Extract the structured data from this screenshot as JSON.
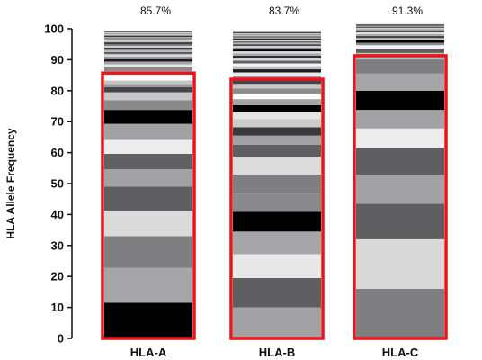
{
  "chart_data": {
    "type": "bar",
    "stacked": true,
    "ylabel": "HLA Allele Frequency",
    "xlabel": "",
    "ylim": [
      0,
      100
    ],
    "yticks": [
      0,
      10,
      20,
      30,
      40,
      50,
      60,
      70,
      80,
      90,
      100
    ],
    "grid": false,
    "categories": [
      "HLA-A",
      "HLA-B",
      "HLA-C"
    ],
    "highlight_percent_labels": [
      "85.7%",
      "83.7%",
      "91.3%"
    ],
    "highlight_values": [
      85.7,
      83.7,
      91.3
    ],
    "highlight_color": "#e8151b",
    "stacks": [
      {
        "category": "HLA-A",
        "segment_values": [
          11.5,
          11.3,
          10.2,
          8.2,
          7.8,
          5.6,
          5.0,
          4.5,
          5.2,
          4.5,
          3.1,
          2.6,
          1.6,
          1.0,
          1.2,
          1.8,
          1.2,
          1.2,
          1.0,
          0.9,
          0.8,
          0.8,
          0.8,
          0.7,
          0.7,
          0.7,
          0.6,
          0.6,
          0.5,
          0.5,
          0.5,
          0.4,
          0.4,
          0.4,
          0.4,
          0.3,
          0.3,
          0.3,
          0.3
        ],
        "segment_colors": [
          "#000000",
          "#a6a6a8",
          "#7f7f81",
          "#dadada",
          "#5f5f61",
          "#a2a2a4",
          "#616163",
          "#ececec",
          "#a2a2a4",
          "#000000",
          "#8a8a8c",
          "#c8c8ca",
          "#454547",
          "#9a9a9c",
          "#c4c4c6",
          "#ffffff",
          "#c8c8ca",
          "#8a8a8c",
          "#e6e6e6",
          "#a6a6a8",
          "#1a1a1a",
          "#9a9a9c",
          "#d8d8da",
          "#5f5f61",
          "#b8b8ba",
          "#3a3a3c",
          "#cfcfd1",
          "#7a7a7c",
          "#222222",
          "#bdbdbf",
          "#e8e8ea",
          "#6a6a6c",
          "#a8a8aa",
          "#2e2e30",
          "#d0d0d2",
          "#8c8c8e",
          "#dcdcde",
          "#555557",
          "#b0b0b2"
        ]
      },
      {
        "category": "HLA-B",
        "segment_values": [
          10.0,
          9.5,
          7.7,
          7.3,
          6.4,
          5.8,
          6.2,
          5.8,
          3.8,
          3.0,
          2.7,
          2.6,
          2.3,
          2.2,
          2.0,
          1.8,
          1.6,
          1.5,
          1.4,
          1.2,
          1.1,
          1.0,
          1.0,
          0.9,
          0.9,
          0.8,
          0.8,
          0.7,
          0.7,
          0.6,
          0.6,
          0.6,
          0.5,
          0.5,
          0.5,
          0.4,
          0.4,
          0.4,
          0.4,
          0.3,
          0.3,
          0.3,
          0.3,
          0.3,
          0.2
        ],
        "segment_colors": [
          "#a2a2a4",
          "#5f5f61",
          "#e8e8e8",
          "#a6a6a8",
          "#000000",
          "#8a8a8c",
          "#7f7f81",
          "#dcdcdc",
          "#5f5f61",
          "#a2a2a4",
          "#3a3a3c",
          "#cccccc",
          "#e6e6e6",
          "#000000",
          "#a6a6a8",
          "#ffffff",
          "#8a8a8c",
          "#c8c8ca",
          "#454547",
          "#9a9a9c",
          "#ececec",
          "#1a1a1a",
          "#bdbdbf",
          "#f2f2f2",
          "#5f5f61",
          "#d8d8da",
          "#2e2e30",
          "#a8a8aa",
          "#e0e0e0",
          "#000000",
          "#8c8c8e",
          "#cfcfd1",
          "#3a3a3c",
          "#b8b8ba",
          "#6a6a6c",
          "#dcdcde",
          "#222222",
          "#a6a6a8",
          "#555557",
          "#d0d0d2",
          "#7a7a7c",
          "#e8e8ea",
          "#1a1a1a",
          "#b0b0b2",
          "#9a9a9c"
        ]
      },
      {
        "category": "HLA-C",
        "segment_values": [
          16.0,
          16.0,
          11.5,
          9.3,
          8.7,
          6.3,
          6.0,
          6.2,
          5.5,
          4.6,
          2.1,
          1.4,
          1.1,
          0.8,
          0.8,
          0.7,
          0.7,
          0.6,
          0.6,
          0.5,
          0.5,
          0.4,
          0.4,
          0.3,
          0.3,
          0.2
        ],
        "segment_colors": [
          "#7f7f81",
          "#d8d8d8",
          "#5f5f61",
          "#a2a2a4",
          "#5f5f61",
          "#ececec",
          "#a2a2a4",
          "#000000",
          "#a6a6a8",
          "#7f7f81",
          "#bebebe",
          "#5f5f61",
          "#f4f4f4",
          "#8a8a8c",
          "#000000",
          "#c8c8ca",
          "#454547",
          "#a8a8aa",
          "#e0e0e0",
          "#1a1a1a",
          "#9a9a9c",
          "#d0d0d2",
          "#555557",
          "#bdbdbf",
          "#2e2e30",
          "#8c8c8e"
        ]
      }
    ]
  }
}
